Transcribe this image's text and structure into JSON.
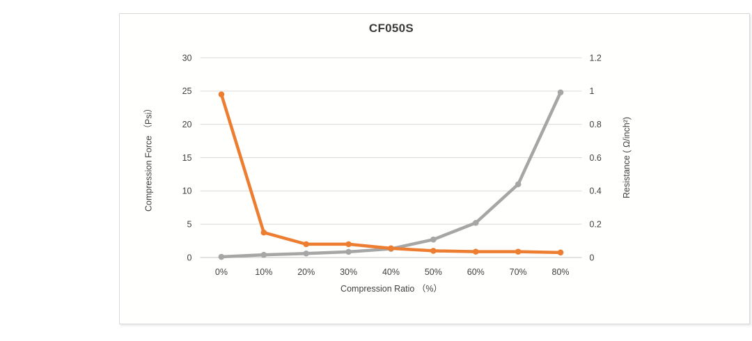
{
  "page": {
    "background": "#ffffff"
  },
  "card": {
    "border_color": "#d9d9d9",
    "background": "#fffffd"
  },
  "chart_data": {
    "type": "line",
    "title": "CF050S",
    "xlabel": "Compression Ratio （%）",
    "ylabel_left": "Compression Force （Psi）",
    "ylabel_right": "Resistance ( Ω/inch²)",
    "categories": [
      "0%",
      "10%",
      "20%",
      "30%",
      "40%",
      "50%",
      "60%",
      "70%",
      "80%"
    ],
    "y_axis_left": {
      "min": 0,
      "max": 30,
      "tick_labels": [
        "30",
        "25",
        "20",
        "15",
        "10",
        "5",
        "0"
      ]
    },
    "y_axis_right": {
      "min": 0,
      "max": 1.2,
      "tick_labels": [
        "1.2",
        "1",
        "0.8",
        "0.6",
        "0.4",
        "0.2",
        "0"
      ]
    },
    "series": [
      {
        "name": "Compression Force (Psi)",
        "axis": "left",
        "color": "#a6a6a6",
        "values": [
          0.1,
          0.4,
          0.6,
          0.85,
          1.3,
          2.7,
          5.2,
          11,
          24.8
        ]
      },
      {
        "name": "Resistance (Ω/inch²)",
        "axis": "right",
        "color": "#ed7d31",
        "values": [
          0.98,
          0.15,
          0.08,
          0.08,
          0.055,
          0.04,
          0.035,
          0.035,
          0.03
        ]
      }
    ],
    "grid": {
      "color": "#d9d9d9",
      "baseline_color": "#c6c6c6"
    },
    "legend": "none",
    "text_color": "#404040"
  }
}
